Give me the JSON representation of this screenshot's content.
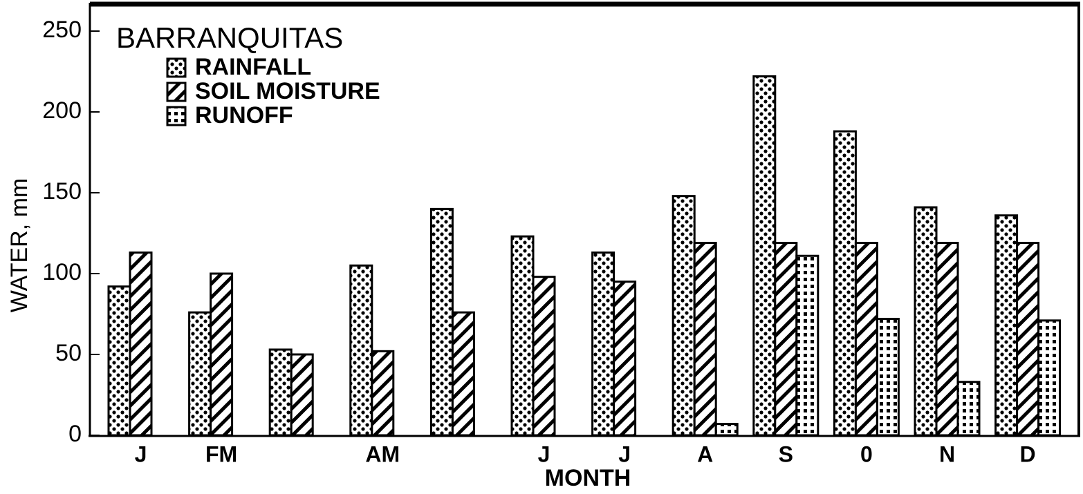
{
  "chart_data": {
    "type": "bar",
    "title": "BARRANQUITAS",
    "x_label": "MONTH",
    "y_label": "WATER, mm",
    "categories": [
      "J",
      "FM",
      null,
      "AM",
      null,
      "J",
      "J",
      "A",
      "S",
      "0",
      "N",
      "D"
    ],
    "series": [
      {
        "name": "RAINFALL",
        "color": "#000000",
        "pattern": "dots",
        "values": [
          92,
          76,
          53,
          105,
          140,
          123,
          113,
          148,
          222,
          188,
          141,
          136
        ]
      },
      {
        "name": "SOIL MOISTURE",
        "color": "#000000",
        "pattern": "hatch",
        "values": [
          113,
          100,
          50,
          52,
          76,
          98,
          95,
          119,
          119,
          119,
          119,
          119
        ]
      },
      {
        "name": "RUNOFF",
        "color": "#000000",
        "pattern": "squares",
        "values": [
          0,
          0,
          0,
          0,
          0,
          0,
          0,
          7,
          111,
          72,
          33,
          71
        ]
      }
    ],
    "ylim": [
      0,
      250
    ],
    "yticks": [
      0,
      50,
      100,
      150,
      200,
      250
    ],
    "grid": false
  }
}
